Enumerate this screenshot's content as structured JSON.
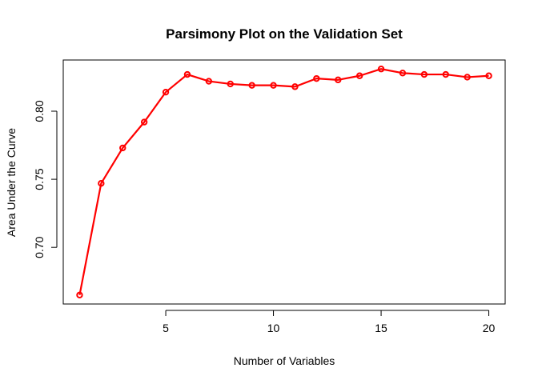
{
  "chart_data": {
    "type": "line",
    "title": "Parsimony Plot on the Validation Set",
    "xlabel": "Number of Variables",
    "ylabel": "Area Under the Curve",
    "x": [
      1,
      2,
      3,
      4,
      5,
      6,
      7,
      8,
      9,
      10,
      11,
      12,
      13,
      14,
      15,
      16,
      17,
      18,
      19,
      20
    ],
    "values": [
      0.665,
      0.747,
      0.773,
      0.792,
      0.814,
      0.827,
      0.822,
      0.82,
      0.819,
      0.819,
      0.818,
      0.824,
      0.823,
      0.826,
      0.831,
      0.828,
      0.827,
      0.827,
      0.825,
      0.826
    ],
    "xlim": [
      0.24,
      20.76
    ],
    "ylim": [
      0.6584,
      0.8376
    ],
    "x_ticks": [
      5,
      10,
      15,
      20
    ],
    "y_ticks": [
      0.7,
      0.75,
      0.8
    ],
    "x_tick_labels": [
      "5",
      "10",
      "15",
      "20"
    ],
    "y_tick_labels": [
      "0.70",
      "0.75",
      "0.80"
    ],
    "grid": false,
    "line_color": "#ff0000",
    "marker": "open-circle"
  }
}
